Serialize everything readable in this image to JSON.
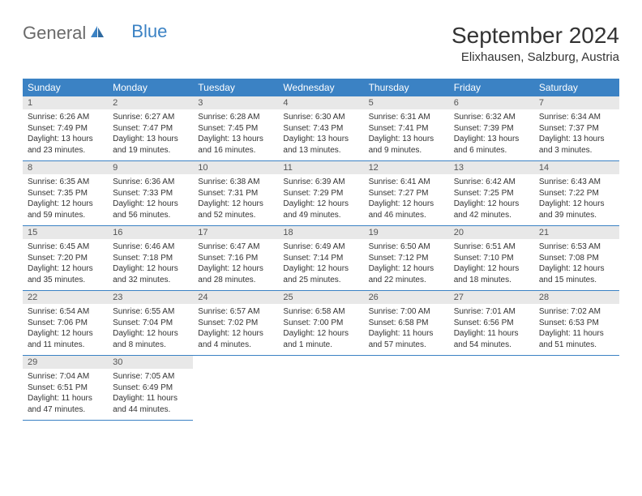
{
  "logo": {
    "part1": "General",
    "part2": "Blue"
  },
  "title": "September 2024",
  "location": "Elixhausen, Salzburg, Austria",
  "colors": {
    "header_bg": "#3b82c4",
    "header_text": "#ffffff",
    "daynum_bg": "#e8e8e8",
    "row_rule": "#3b82c4",
    "body_text": "#333333",
    "logo_gray": "#6a6a6a",
    "logo_blue": "#3b82c4"
  },
  "weekdays": [
    "Sunday",
    "Monday",
    "Tuesday",
    "Wednesday",
    "Thursday",
    "Friday",
    "Saturday"
  ],
  "weeks": [
    [
      {
        "n": "1",
        "sr": "Sunrise: 6:26 AM",
        "ss": "Sunset: 7:49 PM",
        "d1": "Daylight: 13 hours",
        "d2": "and 23 minutes."
      },
      {
        "n": "2",
        "sr": "Sunrise: 6:27 AM",
        "ss": "Sunset: 7:47 PM",
        "d1": "Daylight: 13 hours",
        "d2": "and 19 minutes."
      },
      {
        "n": "3",
        "sr": "Sunrise: 6:28 AM",
        "ss": "Sunset: 7:45 PM",
        "d1": "Daylight: 13 hours",
        "d2": "and 16 minutes."
      },
      {
        "n": "4",
        "sr": "Sunrise: 6:30 AM",
        "ss": "Sunset: 7:43 PM",
        "d1": "Daylight: 13 hours",
        "d2": "and 13 minutes."
      },
      {
        "n": "5",
        "sr": "Sunrise: 6:31 AM",
        "ss": "Sunset: 7:41 PM",
        "d1": "Daylight: 13 hours",
        "d2": "and 9 minutes."
      },
      {
        "n": "6",
        "sr": "Sunrise: 6:32 AM",
        "ss": "Sunset: 7:39 PM",
        "d1": "Daylight: 13 hours",
        "d2": "and 6 minutes."
      },
      {
        "n": "7",
        "sr": "Sunrise: 6:34 AM",
        "ss": "Sunset: 7:37 PM",
        "d1": "Daylight: 13 hours",
        "d2": "and 3 minutes."
      }
    ],
    [
      {
        "n": "8",
        "sr": "Sunrise: 6:35 AM",
        "ss": "Sunset: 7:35 PM",
        "d1": "Daylight: 12 hours",
        "d2": "and 59 minutes."
      },
      {
        "n": "9",
        "sr": "Sunrise: 6:36 AM",
        "ss": "Sunset: 7:33 PM",
        "d1": "Daylight: 12 hours",
        "d2": "and 56 minutes."
      },
      {
        "n": "10",
        "sr": "Sunrise: 6:38 AM",
        "ss": "Sunset: 7:31 PM",
        "d1": "Daylight: 12 hours",
        "d2": "and 52 minutes."
      },
      {
        "n": "11",
        "sr": "Sunrise: 6:39 AM",
        "ss": "Sunset: 7:29 PM",
        "d1": "Daylight: 12 hours",
        "d2": "and 49 minutes."
      },
      {
        "n": "12",
        "sr": "Sunrise: 6:41 AM",
        "ss": "Sunset: 7:27 PM",
        "d1": "Daylight: 12 hours",
        "d2": "and 46 minutes."
      },
      {
        "n": "13",
        "sr": "Sunrise: 6:42 AM",
        "ss": "Sunset: 7:25 PM",
        "d1": "Daylight: 12 hours",
        "d2": "and 42 minutes."
      },
      {
        "n": "14",
        "sr": "Sunrise: 6:43 AM",
        "ss": "Sunset: 7:22 PM",
        "d1": "Daylight: 12 hours",
        "d2": "and 39 minutes."
      }
    ],
    [
      {
        "n": "15",
        "sr": "Sunrise: 6:45 AM",
        "ss": "Sunset: 7:20 PM",
        "d1": "Daylight: 12 hours",
        "d2": "and 35 minutes."
      },
      {
        "n": "16",
        "sr": "Sunrise: 6:46 AM",
        "ss": "Sunset: 7:18 PM",
        "d1": "Daylight: 12 hours",
        "d2": "and 32 minutes."
      },
      {
        "n": "17",
        "sr": "Sunrise: 6:47 AM",
        "ss": "Sunset: 7:16 PM",
        "d1": "Daylight: 12 hours",
        "d2": "and 28 minutes."
      },
      {
        "n": "18",
        "sr": "Sunrise: 6:49 AM",
        "ss": "Sunset: 7:14 PM",
        "d1": "Daylight: 12 hours",
        "d2": "and 25 minutes."
      },
      {
        "n": "19",
        "sr": "Sunrise: 6:50 AM",
        "ss": "Sunset: 7:12 PM",
        "d1": "Daylight: 12 hours",
        "d2": "and 22 minutes."
      },
      {
        "n": "20",
        "sr": "Sunrise: 6:51 AM",
        "ss": "Sunset: 7:10 PM",
        "d1": "Daylight: 12 hours",
        "d2": "and 18 minutes."
      },
      {
        "n": "21",
        "sr": "Sunrise: 6:53 AM",
        "ss": "Sunset: 7:08 PM",
        "d1": "Daylight: 12 hours",
        "d2": "and 15 minutes."
      }
    ],
    [
      {
        "n": "22",
        "sr": "Sunrise: 6:54 AM",
        "ss": "Sunset: 7:06 PM",
        "d1": "Daylight: 12 hours",
        "d2": "and 11 minutes."
      },
      {
        "n": "23",
        "sr": "Sunrise: 6:55 AM",
        "ss": "Sunset: 7:04 PM",
        "d1": "Daylight: 12 hours",
        "d2": "and 8 minutes."
      },
      {
        "n": "24",
        "sr": "Sunrise: 6:57 AM",
        "ss": "Sunset: 7:02 PM",
        "d1": "Daylight: 12 hours",
        "d2": "and 4 minutes."
      },
      {
        "n": "25",
        "sr": "Sunrise: 6:58 AM",
        "ss": "Sunset: 7:00 PM",
        "d1": "Daylight: 12 hours",
        "d2": "and 1 minute."
      },
      {
        "n": "26",
        "sr": "Sunrise: 7:00 AM",
        "ss": "Sunset: 6:58 PM",
        "d1": "Daylight: 11 hours",
        "d2": "and 57 minutes."
      },
      {
        "n": "27",
        "sr": "Sunrise: 7:01 AM",
        "ss": "Sunset: 6:56 PM",
        "d1": "Daylight: 11 hours",
        "d2": "and 54 minutes."
      },
      {
        "n": "28",
        "sr": "Sunrise: 7:02 AM",
        "ss": "Sunset: 6:53 PM",
        "d1": "Daylight: 11 hours",
        "d2": "and 51 minutes."
      }
    ],
    [
      {
        "n": "29",
        "sr": "Sunrise: 7:04 AM",
        "ss": "Sunset: 6:51 PM",
        "d1": "Daylight: 11 hours",
        "d2": "and 47 minutes."
      },
      {
        "n": "30",
        "sr": "Sunrise: 7:05 AM",
        "ss": "Sunset: 6:49 PM",
        "d1": "Daylight: 11 hours",
        "d2": "and 44 minutes."
      },
      null,
      null,
      null,
      null,
      null
    ]
  ]
}
